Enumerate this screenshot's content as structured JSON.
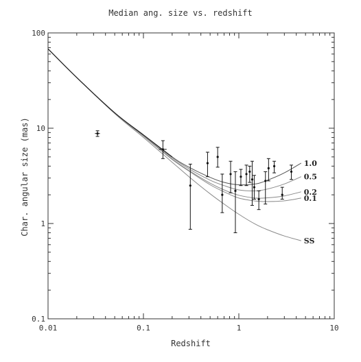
{
  "chart_data": {
    "type": "line",
    "title": "Median ang. size vs. redshift",
    "xlabel": "Redshift",
    "ylabel": "Char. angular size (mas)",
    "x_scale": "log",
    "y_scale": "log",
    "xlim": [
      0.01,
      10
    ],
    "ylim": [
      0.1,
      100
    ],
    "x_ticks": [
      "0.01",
      "0.1",
      "1",
      "10"
    ],
    "y_ticks": [
      "0.1",
      "1",
      "10",
      "100"
    ],
    "grid": false,
    "series": [
      {
        "name": "1.0",
        "kind": "model",
        "x": [
          0.01,
          0.02,
          0.05,
          0.1,
          0.2,
          0.3,
          0.5,
          0.7,
          1.0,
          1.5,
          2.0,
          3.0,
          4.5
        ],
        "y": [
          68,
          34,
          14.5,
          8.5,
          5.0,
          3.9,
          3.05,
          2.7,
          2.55,
          2.6,
          2.85,
          3.4,
          4.3
        ]
      },
      {
        "name": "0.5",
        "kind": "model",
        "x": [
          0.01,
          0.02,
          0.05,
          0.1,
          0.2,
          0.3,
          0.5,
          0.7,
          1.0,
          1.5,
          2.0,
          3.0,
          4.5
        ],
        "y": [
          68,
          34,
          14.5,
          8.4,
          4.9,
          3.75,
          2.85,
          2.5,
          2.25,
          2.2,
          2.3,
          2.6,
          3.1
        ]
      },
      {
        "name": "0.2",
        "kind": "model",
        "x": [
          0.01,
          0.02,
          0.05,
          0.1,
          0.2,
          0.3,
          0.5,
          0.7,
          1.0,
          1.5,
          2.0,
          3.0,
          4.5
        ],
        "y": [
          68,
          34,
          14.4,
          8.3,
          4.75,
          3.6,
          2.65,
          2.25,
          1.98,
          1.85,
          1.86,
          1.95,
          2.15
        ]
      },
      {
        "name": "0.1",
        "kind": "model",
        "x": [
          0.01,
          0.02,
          0.05,
          0.1,
          0.2,
          0.3,
          0.5,
          0.7,
          1.0,
          1.5,
          2.0,
          3.0,
          4.5
        ],
        "y": [
          68,
          34,
          14.4,
          8.25,
          4.7,
          3.55,
          2.55,
          2.15,
          1.85,
          1.72,
          1.7,
          1.73,
          1.85
        ]
      },
      {
        "name": "SS",
        "kind": "model",
        "x": [
          0.01,
          0.02,
          0.05,
          0.1,
          0.2,
          0.3,
          0.5,
          0.7,
          1.0,
          1.5,
          2.0,
          3.0,
          4.5
        ],
        "y": [
          68,
          34,
          14.2,
          8.0,
          4.4,
          3.1,
          2.05,
          1.6,
          1.25,
          0.98,
          0.86,
          0.74,
          0.66
        ]
      }
    ],
    "points": [
      {
        "x": 0.033,
        "y": 8.8,
        "ylo": 8.2,
        "yhi": 9.4,
        "xlo": 0.031,
        "xhi": 0.035
      },
      {
        "x": 0.16,
        "y": 6.0,
        "ylo": 4.8,
        "yhi": 7.4,
        "xlo": 0.145,
        "xhi": 0.175
      },
      {
        "x": 0.31,
        "y": 2.5,
        "ylo": 0.87,
        "yhi": 4.2
      },
      {
        "x": 0.47,
        "y": 4.3,
        "ylo": 3.1,
        "yhi": 5.6
      },
      {
        "x": 0.6,
        "y": 5.0,
        "ylo": 3.9,
        "yhi": 6.3
      },
      {
        "x": 0.67,
        "y": 2.0,
        "ylo": 1.3,
        "yhi": 3.3
      },
      {
        "x": 0.82,
        "y": 3.3,
        "ylo": 2.1,
        "yhi": 4.5
      },
      {
        "x": 0.92,
        "y": 2.2,
        "ylo": 0.8,
        "yhi": 3.5
      },
      {
        "x": 1.05,
        "y": 3.1,
        "ylo": 2.5,
        "yhi": 3.7
      },
      {
        "x": 1.2,
        "y": 3.3,
        "ylo": 2.5,
        "yhi": 4.1
      },
      {
        "x": 1.3,
        "y": 3.5,
        "ylo": 2.7,
        "yhi": 4.0
      },
      {
        "x": 1.38,
        "y": 2.9,
        "ylo": 1.55,
        "yhi": 4.5
      },
      {
        "x": 1.45,
        "y": 2.4,
        "ylo": 1.8,
        "yhi": 3.2
      },
      {
        "x": 1.62,
        "y": 1.8,
        "ylo": 1.4,
        "yhi": 2.2
      },
      {
        "x": 1.9,
        "y": 2.8,
        "ylo": 1.6,
        "yhi": 3.5
      },
      {
        "x": 2.05,
        "y": 3.8,
        "ylo": 2.8,
        "yhi": 4.8
      },
      {
        "x": 2.35,
        "y": 4.0,
        "ylo": 3.4,
        "yhi": 4.5
      },
      {
        "x": 2.85,
        "y": 2.0,
        "ylo": 1.8,
        "yhi": 2.4
      },
      {
        "x": 3.55,
        "y": 3.5,
        "ylo": 2.9,
        "yhi": 4.1
      }
    ],
    "colors": {
      "model": "#8a8a8a",
      "model_top": "#222222",
      "data": "#111111",
      "axis": "#333333"
    }
  }
}
